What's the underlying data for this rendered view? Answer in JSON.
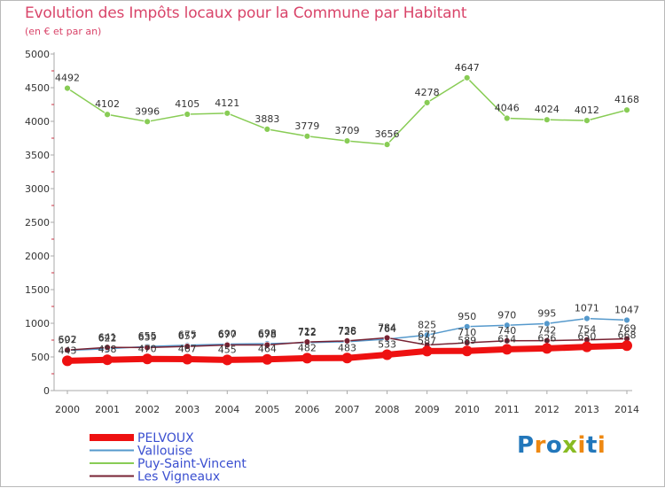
{
  "header": {
    "title": "Evolution des Impôts locaux pour la Commune par Habitant",
    "subtitle": "(en € et par an)"
  },
  "brand": {
    "text": "Proxiti"
  },
  "colors": {
    "axis": "#aaaaaa",
    "tick_label": "#333333",
    "data_label": "#333333",
    "title": "#d9456a",
    "legend_text": "#3a4fd0"
  },
  "chart_data": {
    "type": "line",
    "x": [
      2000,
      2001,
      2002,
      2003,
      2004,
      2005,
      2006,
      2007,
      2008,
      2009,
      2010,
      2011,
      2012,
      2013,
      2014
    ],
    "ylim": [
      0,
      5000
    ],
    "yticks": [
      0,
      500,
      1000,
      1500,
      2000,
      2500,
      3000,
      3500,
      4000,
      4500,
      5000
    ],
    "grid": false,
    "legend_position": "bottom-left",
    "series": [
      {
        "name": "Puy-Saint-Vincent",
        "color": "#88cc55",
        "values": [
          4492,
          4102,
          3996,
          4105,
          4121,
          3883,
          3779,
          3709,
          3656,
          4278,
          4647,
          4046,
          4024,
          4012,
          4168
        ]
      },
      {
        "name": "Vallouise",
        "color": "#5599cc",
        "values": [
          597,
          622,
          655,
          675,
          690,
          698,
          712,
          726,
          764,
          825,
          950,
          970,
          995,
          1071,
          1047
        ]
      },
      {
        "name": "Les Vigneaux",
        "color": "#772233",
        "values": [
          602,
          641,
          639,
          657,
          677,
          678,
          722,
          738,
          784,
          677,
          710,
          740,
          742,
          754,
          769
        ]
      },
      {
        "name": "PELVOUX",
        "color": "#ee1111",
        "values": [
          443,
          458,
          470,
          467,
          455,
          464,
          482,
          483,
          533,
          587,
          589,
          614,
          626,
          650,
          668
        ]
      }
    ]
  }
}
